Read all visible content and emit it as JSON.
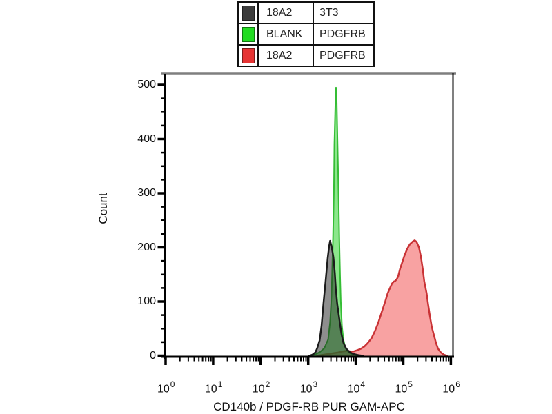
{
  "legend": {
    "rows": [
      {
        "id": "18a2-3t3",
        "swatch_color": "#3c3c3c",
        "sample": "18A2",
        "target": "3T3"
      },
      {
        "id": "blank-pdgfrb",
        "swatch_color": "#22dc22",
        "sample": "BLANK",
        "target": "PDGFRB"
      },
      {
        "id": "18a2-pdgfrb",
        "swatch_color": "#e63434",
        "sample": "18A2",
        "target": "PDGFRB"
      }
    ]
  },
  "chart_data": {
    "type": "area",
    "subtype": "flow-cytometry-histogram-overlay",
    "title": "",
    "xlabel": "CD140b / PDGF-RB PUR GAM-APC",
    "ylabel": "Count",
    "x_scale": "log10",
    "x_tick_base": "10",
    "x_tick_exponents": [
      0,
      1,
      2,
      3,
      4,
      5,
      6
    ],
    "x_minor_subs": [
      2,
      3,
      4,
      5,
      6,
      7,
      8,
      9
    ],
    "xlim_log": [
      0,
      6.05
    ],
    "ylim": [
      0,
      500
    ],
    "y_ticks": [
      0,
      100,
      200,
      300,
      400,
      500
    ],
    "y_minor_step": 25,
    "grid": false,
    "legend_position": "top-center-outside",
    "frame": {
      "axis_color": "#000000",
      "top_border_color": "#7f7f7f"
    },
    "series": [
      {
        "id": "18a2-pdgfrb",
        "name": "18A2 / PDGFRB",
        "stroke": "#c93336",
        "stroke_width": 2.5,
        "fill": "rgb(242,70,70)",
        "fill_opacity": 0.5,
        "peak": {
          "x_log": 5.24,
          "count": 213
        },
        "points": [
          [
            3.19,
            0
          ],
          [
            3.34,
            2
          ],
          [
            3.48,
            4
          ],
          [
            3.63,
            6
          ],
          [
            3.73,
            8
          ],
          [
            3.82,
            9
          ],
          [
            3.89,
            8
          ],
          [
            3.96,
            8
          ],
          [
            4.03,
            10
          ],
          [
            4.11,
            13
          ],
          [
            4.18,
            17
          ],
          [
            4.25,
            23
          ],
          [
            4.33,
            32
          ],
          [
            4.4,
            45
          ],
          [
            4.47,
            60
          ],
          [
            4.54,
            79
          ],
          [
            4.62,
            100
          ],
          [
            4.67,
            115
          ],
          [
            4.72,
            125
          ],
          [
            4.76,
            133
          ],
          [
            4.8,
            137
          ],
          [
            4.83,
            138
          ],
          [
            4.86,
            141
          ],
          [
            4.89,
            146
          ],
          [
            4.93,
            160
          ],
          [
            4.98,
            173
          ],
          [
            5.02,
            184
          ],
          [
            5.08,
            197
          ],
          [
            5.14,
            206
          ],
          [
            5.2,
            211
          ],
          [
            5.24,
            213
          ],
          [
            5.28,
            210
          ],
          [
            5.33,
            200
          ],
          [
            5.37,
            183
          ],
          [
            5.41,
            160
          ],
          [
            5.44,
            138
          ],
          [
            5.49,
            115
          ],
          [
            5.52,
            96
          ],
          [
            5.56,
            73
          ],
          [
            5.6,
            53
          ],
          [
            5.65,
            36
          ],
          [
            5.69,
            23
          ],
          [
            5.73,
            13
          ],
          [
            5.79,
            6
          ],
          [
            5.85,
            2
          ],
          [
            5.92,
            0
          ]
        ]
      },
      {
        "id": "blank-pdgfrb",
        "name": "BLANK / PDGFRB",
        "stroke": "#35bd35",
        "stroke_width": 2,
        "fill": "rgb(70,215,70)",
        "fill_opacity": 0.62,
        "peak": {
          "x_log": 3.58,
          "count": 495
        },
        "points": [
          [
            3.08,
            0
          ],
          [
            3.16,
            3
          ],
          [
            3.25,
            7
          ],
          [
            3.34,
            14
          ],
          [
            3.42,
            30
          ],
          [
            3.46,
            62
          ],
          [
            3.49,
            110
          ],
          [
            3.52,
            210
          ],
          [
            3.54,
            300
          ],
          [
            3.55,
            390
          ],
          [
            3.57,
            462
          ],
          [
            3.585,
            495
          ],
          [
            3.6,
            470
          ],
          [
            3.61,
            425
          ],
          [
            3.625,
            355
          ],
          [
            3.64,
            285
          ],
          [
            3.655,
            212
          ],
          [
            3.67,
            148
          ],
          [
            3.685,
            100
          ],
          [
            3.71,
            55
          ],
          [
            3.74,
            30
          ],
          [
            3.78,
            15
          ],
          [
            3.84,
            7
          ],
          [
            3.91,
            3
          ],
          [
            4.0,
            1
          ],
          [
            4.07,
            0
          ]
        ]
      },
      {
        "id": "18a2-3t3",
        "name": "18A2 / 3T3",
        "stroke": "#1b1b1b",
        "stroke_width": 2.5,
        "fill": "rgb(30,30,30)",
        "fill_opacity": 0.5,
        "peak": {
          "x_log": 3.46,
          "count": 212
        },
        "points": [
          [
            3.02,
            0
          ],
          [
            3.09,
            2
          ],
          [
            3.15,
            6
          ],
          [
            3.19,
            14
          ],
          [
            3.24,
            28
          ],
          [
            3.28,
            55
          ],
          [
            3.32,
            95
          ],
          [
            3.37,
            142
          ],
          [
            3.41,
            180
          ],
          [
            3.44,
            202
          ],
          [
            3.46,
            212
          ],
          [
            3.49,
            202
          ],
          [
            3.53,
            182
          ],
          [
            3.56,
            152
          ],
          [
            3.58,
            124
          ],
          [
            3.61,
            96
          ],
          [
            3.66,
            64
          ],
          [
            3.7,
            40
          ],
          [
            3.74,
            24
          ],
          [
            3.8,
            13
          ],
          [
            3.88,
            6
          ],
          [
            3.96,
            3
          ],
          [
            4.06,
            1
          ],
          [
            4.15,
            0
          ]
        ]
      }
    ]
  }
}
